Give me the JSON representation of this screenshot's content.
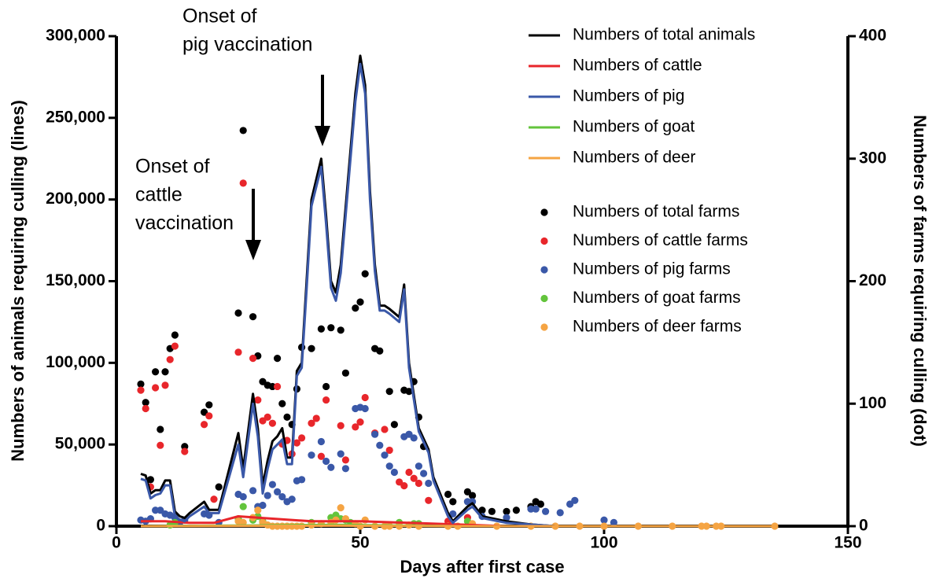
{
  "chart_data": {
    "type": "line",
    "xlabel": "Days after first case",
    "ylabel": "Numbers of animals requiring  culling (lines)",
    "y2label": "Numbers of farms requiring culling (dot)",
    "xlim": [
      0,
      150
    ],
    "xticks": [
      0,
      50,
      100,
      150
    ],
    "ylim": [
      0,
      300000
    ],
    "yticks": [
      0,
      {
        "value": 50000,
        "label": "50,000"
      },
      {
        "value": 100000,
        "label": "100,000"
      },
      {
        "value": 150000,
        "label": "150,000"
      },
      {
        "value": 200000,
        "label": "200,000"
      },
      {
        "value": 250000,
        "label": "250,000"
      },
      {
        "value": 300000,
        "label": "300,000"
      }
    ],
    "y2lim": [
      0,
      400
    ],
    "y2ticks": [
      0,
      100,
      200,
      300,
      400
    ],
    "legend": "upper right",
    "annotations": [
      {
        "text": [
          "Onset of",
          "pig vaccination"
        ]
      },
      {
        "text": [
          "Onset of",
          "cattle",
          "vaccination"
        ]
      }
    ],
    "series": [
      {
        "name": "Numbers of total animals",
        "type": "line",
        "color": "#000000",
        "x": [
          5,
          6,
          7,
          8,
          9,
          10,
          11,
          12,
          13,
          14,
          15,
          18,
          19,
          21,
          25,
          26,
          28,
          29,
          30,
          31,
          32,
          33,
          34,
          35,
          36,
          37,
          38,
          39,
          40,
          42,
          43,
          44,
          45,
          46,
          48,
          49,
          50,
          51,
          52,
          53,
          54,
          55,
          56,
          58,
          59,
          60,
          62,
          64,
          65,
          68,
          69,
          72,
          73,
          75,
          80,
          85,
          90,
          135
        ],
        "values": [
          32000,
          31000,
          20000,
          22000,
          22000,
          28000,
          28000,
          9000,
          6000,
          5000,
          8000,
          15000,
          10000,
          10000,
          57000,
          35000,
          81000,
          60000,
          25000,
          40000,
          52000,
          55000,
          60000,
          42000,
          42000,
          95000,
          100000,
          150000,
          200000,
          225000,
          190000,
          150000,
          143000,
          160000,
          230000,
          265000,
          288000,
          270000,
          205000,
          160000,
          135000,
          135000,
          133000,
          128000,
          148000,
          100000,
          60000,
          47000,
          30000,
          8000,
          3000,
          12000,
          14000,
          6000,
          3000,
          1000,
          0,
          0
        ]
      },
      {
        "name": "Numbers of cattle",
        "type": "line",
        "color": "#e8262b",
        "x": [
          5,
          10,
          15,
          20,
          25,
          30,
          35,
          40,
          50,
          60,
          70,
          80,
          135
        ],
        "values": [
          3000,
          3000,
          2000,
          2000,
          6000,
          5000,
          4000,
          3000,
          3000,
          2000,
          1000,
          0,
          0
        ]
      },
      {
        "name": "Numbers of pig",
        "type": "line",
        "color": "#3a58a8",
        "x": [
          5,
          6,
          7,
          8,
          9,
          10,
          11,
          12,
          13,
          14,
          15,
          18,
          19,
          21,
          25,
          26,
          28,
          29,
          30,
          31,
          32,
          33,
          34,
          35,
          36,
          37,
          38,
          39,
          40,
          42,
          43,
          44,
          45,
          46,
          48,
          49,
          50,
          51,
          52,
          53,
          54,
          55,
          56,
          58,
          59,
          60,
          62,
          64,
          65,
          68,
          69,
          72,
          73,
          75,
          80,
          85,
          90,
          135
        ],
        "values": [
          29000,
          28000,
          17000,
          19000,
          20000,
          25000,
          25000,
          6000,
          4000,
          3000,
          6000,
          12000,
          8000,
          8000,
          50000,
          30000,
          75000,
          55000,
          20000,
          35000,
          47000,
          50000,
          53000,
          38000,
          38000,
          92000,
          97000,
          145000,
          196000,
          220000,
          185000,
          146000,
          138000,
          155000,
          225000,
          260000,
          283000,
          265000,
          200000,
          156000,
          132000,
          132000,
          130000,
          125000,
          145000,
          97000,
          58000,
          45000,
          28000,
          6000,
          2000,
          10000,
          12000,
          5000,
          2000,
          1000,
          0,
          0
        ]
      },
      {
        "name": "Numbers of goat",
        "type": "line",
        "color": "#63c43c",
        "x": [
          5,
          30,
          45,
          60,
          70,
          135
        ],
        "values": [
          0,
          500,
          800,
          300,
          0,
          0
        ]
      },
      {
        "name": "Numbers of deer",
        "type": "line",
        "color": "#f5a443",
        "x": [
          5,
          45,
          70,
          135
        ],
        "values": [
          0,
          300,
          0,
          0
        ]
      },
      {
        "name": "Numbers of total farms",
        "type": "scatter",
        "axis": "y2",
        "color": "#000000",
        "x": [
          5,
          6,
          7,
          8,
          9,
          10,
          11,
          12,
          14,
          18,
          19,
          21,
          25,
          26,
          28,
          29,
          30,
          31,
          32,
          33,
          34,
          35,
          36,
          37,
          38,
          40,
          42,
          43,
          44,
          46,
          47,
          49,
          50,
          51,
          53,
          54,
          56,
          57,
          59,
          60,
          61,
          62,
          63,
          68,
          69,
          72,
          73,
          75,
          77,
          80,
          82,
          85,
          86,
          87
        ],
        "values": [
          116,
          101,
          38,
          126,
          79,
          126,
          145,
          156,
          65,
          93,
          99,
          32,
          174,
          323,
          171,
          139,
          118,
          115,
          114,
          137,
          100,
          89,
          83,
          112,
          146,
          145,
          161,
          114,
          162,
          160,
          125,
          178,
          183,
          206,
          145,
          143,
          110,
          83,
          111,
          110,
          118,
          89,
          65,
          26,
          20,
          28,
          25,
          13,
          12,
          12,
          13,
          16,
          20,
          18
        ]
      },
      {
        "name": "Numbers of cattle farms",
        "type": "scatter",
        "axis": "y2",
        "color": "#e8262b",
        "x": [
          5,
          6,
          7,
          8,
          9,
          10,
          11,
          12,
          14,
          18,
          19,
          20,
          25,
          26,
          28,
          29,
          30,
          31,
          32,
          33,
          34,
          35,
          36,
          37,
          38,
          40,
          41,
          42,
          43,
          46,
          47,
          49,
          50,
          51,
          53,
          55,
          56,
          58,
          59,
          60,
          61,
          62,
          64,
          68,
          72
        ],
        "values": [
          111,
          96,
          32,
          113,
          66,
          115,
          136,
          147,
          61,
          83,
          90,
          22,
          142,
          280,
          137,
          103,
          86,
          89,
          84,
          114,
          67,
          70,
          59,
          68,
          72,
          84,
          88,
          57,
          103,
          82,
          54,
          81,
          85,
          105,
          76,
          79,
          62,
          36,
          33,
          44,
          39,
          35,
          21,
          4,
          7
        ]
      },
      {
        "name": "Numbers of pig farms",
        "type": "scatter",
        "axis": "y2",
        "color": "#3a58a8",
        "x": [
          5,
          6,
          7,
          8,
          9,
          10,
          11,
          12,
          13,
          14,
          18,
          19,
          21,
          25,
          26,
          28,
          29,
          30,
          31,
          32,
          33,
          34,
          35,
          36,
          37,
          38,
          40,
          42,
          43,
          44,
          46,
          47,
          49,
          50,
          51,
          53,
          54,
          55,
          56,
          57,
          59,
          60,
          61,
          62,
          63,
          64,
          69,
          72,
          73,
          75,
          80,
          85,
          86,
          88,
          91,
          93,
          94,
          100,
          102
        ],
        "values": [
          5,
          4,
          6,
          13,
          13,
          10,
          9,
          7,
          3,
          5,
          10,
          9,
          3,
          26,
          24,
          29,
          16,
          17,
          25,
          34,
          28,
          24,
          20,
          22,
          37,
          38,
          58,
          69,
          53,
          48,
          59,
          47,
          96,
          97,
          96,
          75,
          66,
          58,
          49,
          44,
          73,
          75,
          72,
          49,
          43,
          35,
          10,
          20,
          20,
          8,
          7,
          14,
          14,
          12,
          11,
          18,
          21,
          5,
          3
        ]
      },
      {
        "name": "Numbers of goat farms",
        "type": "scatter",
        "axis": "y2",
        "color": "#63c43c",
        "x": [
          11,
          12,
          25,
          26,
          28,
          29,
          30,
          40,
          44,
          45,
          46,
          47,
          48,
          58,
          61,
          62,
          72
        ],
        "values": [
          1,
          3,
          6,
          16,
          5,
          8,
          4,
          3,
          7,
          9,
          6,
          5,
          3,
          3,
          2,
          2,
          4
        ]
      },
      {
        "name": "Numbers of deer farms",
        "type": "scatter",
        "axis": "y2",
        "color": "#f5a443",
        "x": [
          25,
          26,
          28,
          29,
          30,
          31,
          32,
          33,
          34,
          35,
          36,
          37,
          38,
          40,
          42,
          44,
          45,
          46,
          47,
          49,
          50,
          51,
          53,
          55,
          56,
          58,
          60,
          62,
          68,
          70,
          73,
          78,
          85,
          90,
          95,
          100,
          107,
          114,
          120,
          121,
          123,
          124,
          135
        ],
        "values": [
          4,
          3,
          7,
          13,
          3,
          1,
          0,
          0,
          0,
          0,
          0,
          0,
          0,
          1,
          2,
          3,
          5,
          15,
          6,
          2,
          0,
          5,
          0,
          0,
          0,
          0,
          1,
          0,
          0,
          0,
          2,
          0,
          0,
          0,
          0,
          0,
          0,
          0,
          0,
          0,
          0,
          0,
          0
        ]
      }
    ]
  }
}
